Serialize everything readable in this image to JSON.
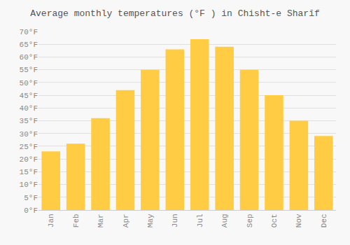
{
  "chart_data": {
    "type": "bar",
    "title": "Average monthly temperatures (°F ) in Chisht-e Sharīf",
    "categories": [
      "Jan",
      "Feb",
      "Mar",
      "Apr",
      "May",
      "Jun",
      "Jul",
      "Aug",
      "Sep",
      "Oct",
      "Nov",
      "Dec"
    ],
    "values": [
      23,
      26,
      36,
      47,
      55,
      63,
      67,
      64,
      55,
      45,
      35,
      29
    ],
    "color": "#FFCC44",
    "ylim": [
      0,
      70
    ],
    "yticks": [
      {
        "value": 0,
        "label": "0°F"
      },
      {
        "value": 5,
        "label": "5°F"
      },
      {
        "value": 10,
        "label": "10°F"
      },
      {
        "value": 15,
        "label": "15°F"
      },
      {
        "value": 20,
        "label": "20°F"
      },
      {
        "value": 25,
        "label": "25°F"
      },
      {
        "value": 30,
        "label": "30°F"
      },
      {
        "value": 35,
        "label": "35°F"
      },
      {
        "value": 40,
        "label": "40°F"
      },
      {
        "value": 45,
        "label": "45°F"
      },
      {
        "value": 50,
        "label": "50°F"
      },
      {
        "value": 55,
        "label": "55°F"
      },
      {
        "value": 60,
        "label": "60°F"
      },
      {
        "value": 65,
        "label": "65°F"
      },
      {
        "value": 70,
        "label": "70°F"
      }
    ],
    "grid": true
  }
}
